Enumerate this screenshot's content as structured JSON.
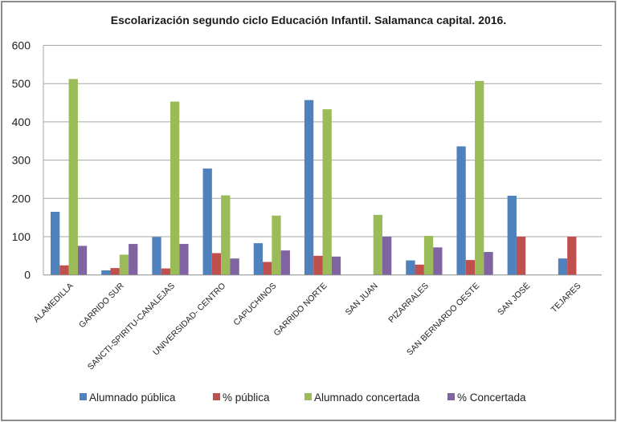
{
  "chart_data": {
    "type": "bar",
    "title": "Escolarización  segundo ciclo Educación Infantil. Salamanca capital. 2016.",
    "xlabel": "",
    "ylabel": "",
    "ylim": [
      0,
      600
    ],
    "yticks": [
      0,
      100,
      200,
      300,
      400,
      500,
      600
    ],
    "ytick_labels": [
      "0",
      "100",
      "200",
      "300",
      "400",
      "500",
      "600"
    ],
    "grid": true,
    "legend_position": "bottom",
    "categories": [
      "ALAMEDILLA",
      "GARRIDO SUR",
      "SANCTI-SPIRITU-CANALEJAS",
      "UNIVERSIDAD- CENTRO",
      "CAPUCHINOS",
      "GARRIDO NORTE",
      "SAN JUAN",
      "PIZARRALES",
      "SAN BERNARDO OESTE",
      "SAN JOSÉ",
      "TEJARES"
    ],
    "series": [
      {
        "name": "Alumnado pública",
        "color": "#4F81BD",
        "values": [
          165,
          12,
          99,
          278,
          83,
          457,
          0,
          38,
          336,
          207,
          43
        ]
      },
      {
        "name": "% pública",
        "color": "#C0504D",
        "values": [
          25,
          18,
          17,
          57,
          34,
          50,
          0,
          27,
          39,
          100,
          100
        ]
      },
      {
        "name": "Alumnado concertada",
        "color": "#9BBB59",
        "values": [
          512,
          53,
          453,
          208,
          155,
          433,
          157,
          102,
          507,
          0,
          0
        ]
      },
      {
        "name": "% Concertada",
        "color": "#8064A2",
        "values": [
          76,
          81,
          81,
          43,
          64,
          48,
          100,
          72,
          60,
          0,
          0
        ]
      }
    ]
  }
}
